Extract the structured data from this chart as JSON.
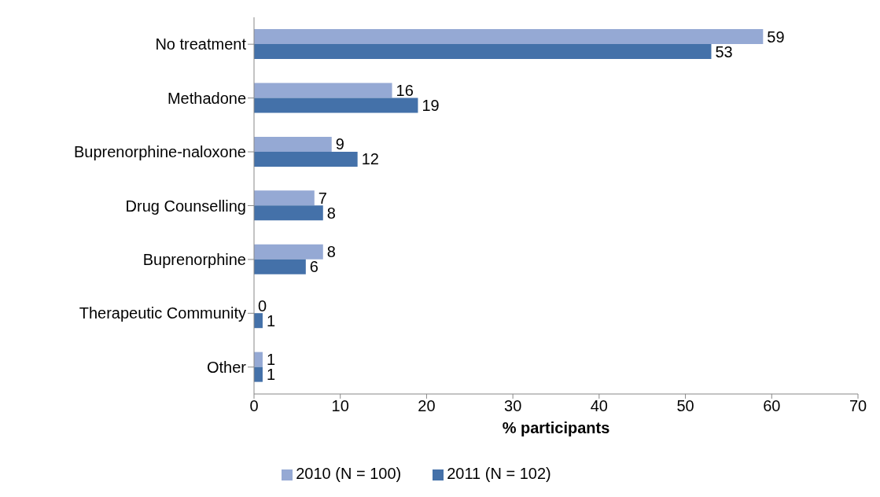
{
  "chart_data": {
    "type": "bar",
    "orientation": "horizontal",
    "xlabel": "% participants",
    "categories": [
      "No treatment",
      "Methadone",
      "Buprenorphine-naloxone",
      "Drug Counselling",
      "Buprenorphine",
      "Therapeutic Community",
      "Other"
    ],
    "series": [
      {
        "name": "2010 (N = 100)",
        "color": "#95a9d4",
        "values": [
          59,
          16,
          9,
          7,
          8,
          0,
          1
        ]
      },
      {
        "name": "2011 (N = 102)",
        "color": "#4471a9",
        "values": [
          53,
          19,
          12,
          8,
          6,
          1,
          1
        ]
      }
    ],
    "xlim": [
      0,
      70
    ],
    "xticks": [
      0,
      10,
      20,
      30,
      40,
      50,
      60,
      70
    ],
    "grid": false,
    "legend": "bottom",
    "data_labels": true
  }
}
